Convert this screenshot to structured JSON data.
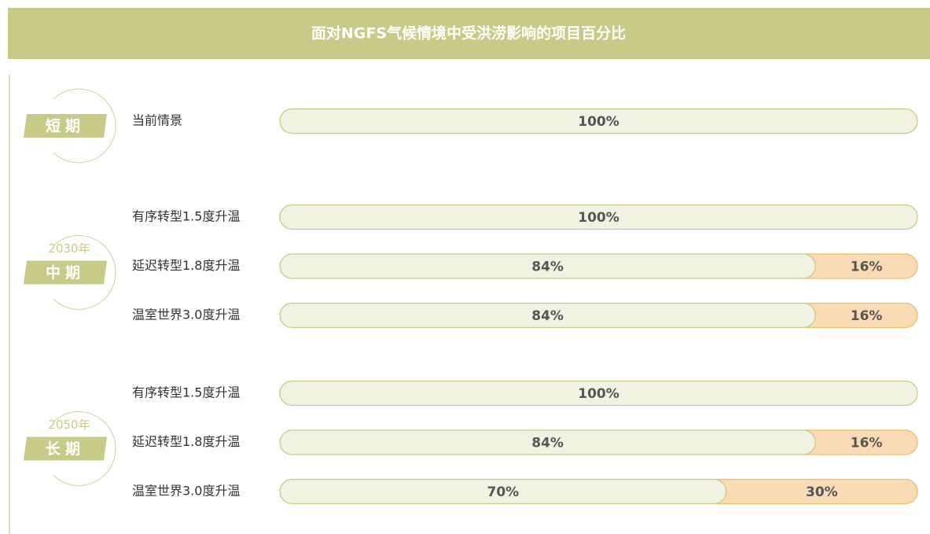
{
  "chart_data": {
    "type": "stacked-bar",
    "title": "面对NGFS气候情境中受洪涝影响的项目百分比",
    "colors": [
      "#f1f2e1",
      "#f9dcb5"
    ],
    "borders": [
      "#c8cb87",
      "#efbf5e"
    ],
    "groups": [
      {
        "label": "短期",
        "rows": [
          {
            "name": "当前情景",
            "values": [
              100
            ],
            "value_labels": [
              "100%"
            ]
          }
        ]
      },
      {
        "label": "中期",
        "year": "2030年",
        "rows": [
          {
            "name": "有序转型1.5度升温",
            "values": [
              100
            ],
            "value_labels": [
              "100%"
            ]
          },
          {
            "name": "延迟转型1.8度升温",
            "values": [
              84,
              16
            ],
            "value_labels": [
              "84%",
              "16%"
            ]
          },
          {
            "name": "温室世界3.0度升温",
            "values": [
              84,
              16
            ],
            "value_labels": [
              "84%",
              "16%"
            ]
          }
        ]
      },
      {
        "label": "长期",
        "year": "2050年",
        "rows": [
          {
            "name": "有序转型1.5度升温",
            "values": [
              100
            ],
            "value_labels": [
              "100%"
            ]
          },
          {
            "name": "延迟转型1.8度升温",
            "values": [
              84,
              16
            ],
            "value_labels": [
              "84%",
              "16%"
            ]
          },
          {
            "name": "温室世界3.0度升温",
            "values": [
              70,
              30
            ],
            "value_labels": [
              "70%",
              "30%"
            ]
          }
        ]
      }
    ]
  }
}
